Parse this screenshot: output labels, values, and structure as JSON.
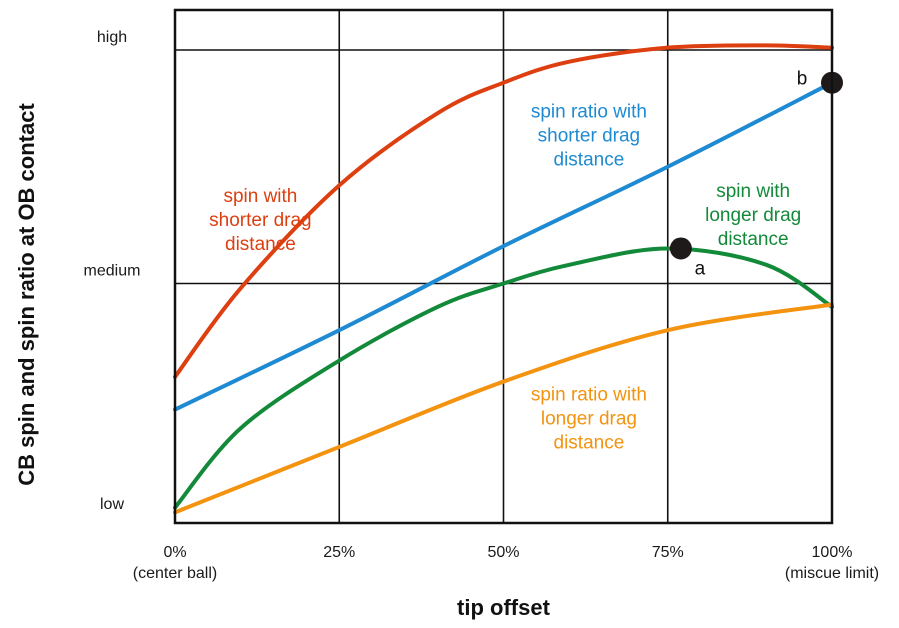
{
  "chart_data": {
    "type": "line",
    "xlabel": "tip offset",
    "ylabel": "CB spin and spin ratio at OB contact",
    "x_ticks": [
      {
        "value": 0,
        "label": "0%",
        "sublabel": "(center ball)"
      },
      {
        "value": 25,
        "label": "25%",
        "sublabel": ""
      },
      {
        "value": 50,
        "label": "50%",
        "sublabel": ""
      },
      {
        "value": 75,
        "label": "75%",
        "sublabel": ""
      },
      {
        "value": 100,
        "label": "100%",
        "sublabel": "(miscue limit)"
      }
    ],
    "y_ticks": [
      {
        "value": 0,
        "label": "low"
      },
      {
        "value": 1,
        "label": "medium"
      },
      {
        "value": 2,
        "label": "high"
      }
    ],
    "xlim": [
      0,
      100
    ],
    "ylim": [
      0,
      2.15
    ],
    "grid": true,
    "series": [
      {
        "color": "#dd3f10",
        "x": [
          0,
          10,
          25,
          40,
          50,
          60,
          75,
          90,
          100
        ],
        "y": [
          0.6,
          0.98,
          1.42,
          1.73,
          1.86,
          1.95,
          2.01,
          2.02,
          2.01
        ]
      },
      {
        "color": "#1e8ad2",
        "x": [
          0,
          25,
          50,
          75,
          100
        ],
        "y": [
          0.46,
          0.8,
          1.16,
          1.5,
          1.86
        ]
      },
      {
        "color": "#138a3a",
        "x": [
          0,
          10,
          25,
          40,
          50,
          60,
          75,
          90,
          100
        ],
        "y": [
          0.04,
          0.38,
          0.67,
          0.9,
          1.0,
          1.08,
          1.15,
          1.08,
          0.9
        ]
      },
      {
        "color": "#f39310",
        "x": [
          0,
          25,
          50,
          75,
          100
        ],
        "y": [
          0.02,
          0.3,
          0.58,
          0.8,
          0.91
        ]
      }
    ],
    "annotations": [
      {
        "lines": [
          "spin with",
          "shorter drag",
          "distance"
        ],
        "color": "#dd3f10",
        "x": 13,
        "y": 1.35
      },
      {
        "lines": [
          "spin ratio with",
          "shorter drag",
          "distance"
        ],
        "color": "#1e8ad2",
        "x": 63,
        "y": 1.71
      },
      {
        "lines": [
          "spin with",
          "longer drag",
          "distance"
        ],
        "color": "#138a3a",
        "x": 88,
        "y": 1.37
      },
      {
        "lines": [
          "spin ratio with",
          "longer drag",
          "distance"
        ],
        "color": "#f39310",
        "x": 63,
        "y": 0.5
      }
    ],
    "points": [
      {
        "label": "a",
        "x": 77,
        "y": 1.15
      },
      {
        "label": "b",
        "x": 100,
        "y": 1.86
      }
    ]
  }
}
